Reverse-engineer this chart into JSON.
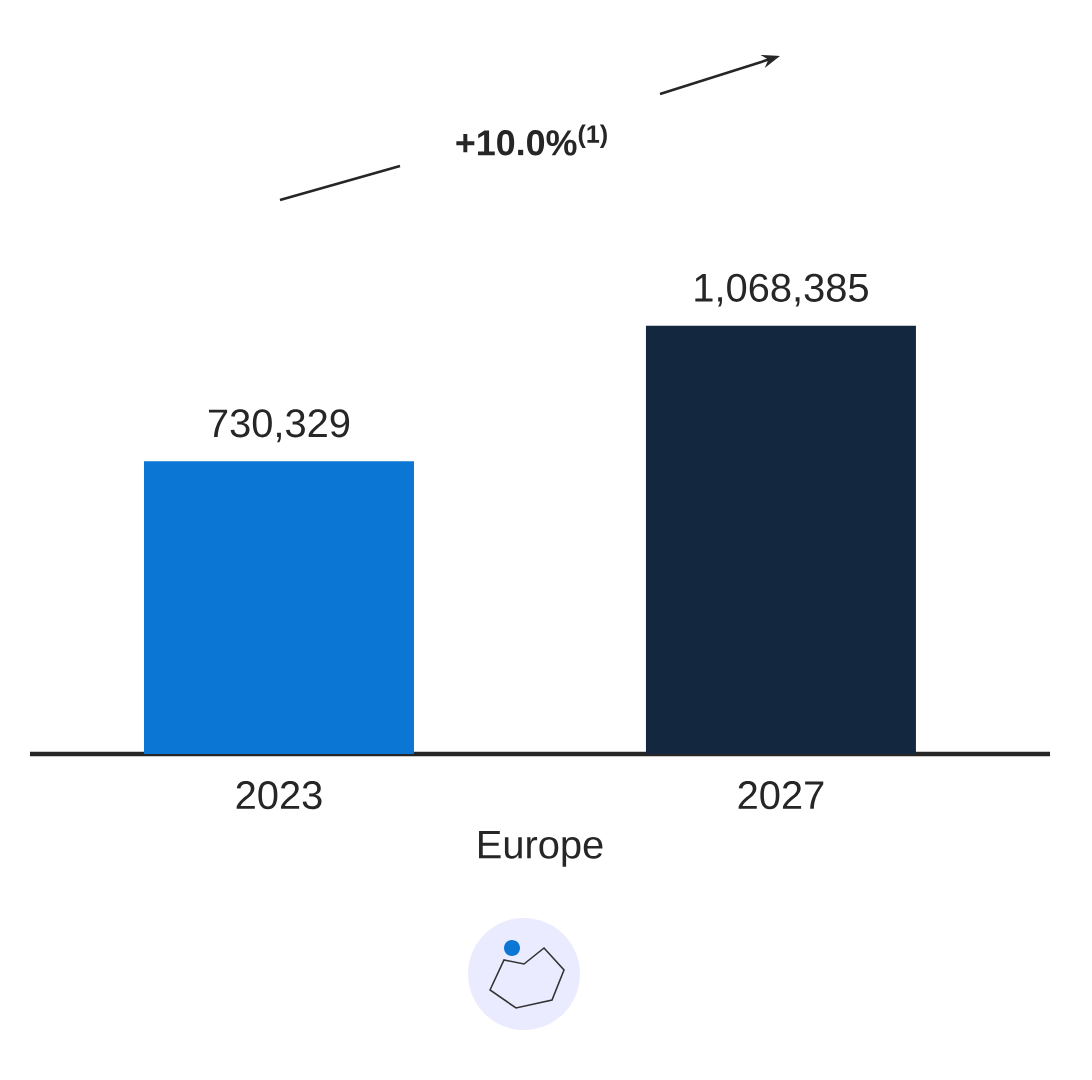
{
  "chart_data": {
    "type": "bar",
    "categories": [
      "2023",
      "2027"
    ],
    "xlabel": "Europe",
    "values": [
      730329,
      1068385
    ],
    "colors": [
      "#0b76d4",
      "#13283f"
    ],
    "value_labels": [
      "730,329",
      "1,068,385"
    ],
    "annotations": [
      "+10.0%$^{(1)}$"
    ]
  }
}
